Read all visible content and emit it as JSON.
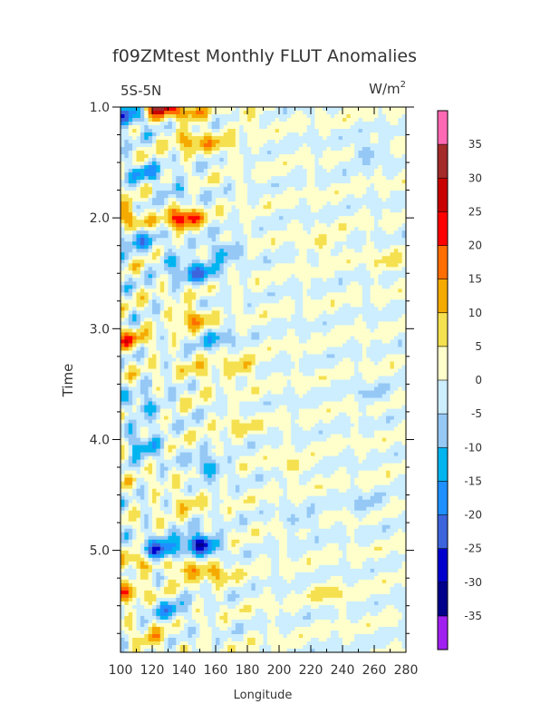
{
  "chart_data": {
    "type": "heatmap",
    "title": "f09ZMtest Monthly FLUT Anomalies",
    "left_subtitle": "5S-5N",
    "right_subtitle_base": "W/m",
    "right_subtitle_sup": "2",
    "xlabel": "Longitude",
    "ylabel": "Time",
    "xlim": [
      100,
      280
    ],
    "ylim": [
      1.0,
      5.92
    ],
    "x_ticks": [
      100,
      120,
      140,
      160,
      180,
      200,
      220,
      240,
      260,
      280
    ],
    "y_ticks": [
      "1.0",
      "2.0",
      "3.0",
      "4.0",
      "5.0"
    ],
    "y_tick_values": [
      1.0,
      2.0,
      3.0,
      4.0,
      5.0
    ],
    "colorbar": {
      "levels": [
        -35,
        -30,
        -25,
        -20,
        -15,
        -10,
        -5,
        0,
        5,
        10,
        15,
        20,
        25,
        30,
        35
      ],
      "labels": [
        "-35",
        "-30",
        "-25",
        "-20",
        "-15",
        "-10",
        "-5",
        "0",
        "5",
        "10",
        "15",
        "20",
        "25",
        "30",
        "35"
      ],
      "colors": [
        "#a020f0",
        "#00008b",
        "#0000cd",
        "#3c64dc",
        "#1e90ff",
        "#00b4f0",
        "#96c8f5",
        "#cceeff",
        "#ffffcc",
        "#f5e050",
        "#f5aa00",
        "#ff6e00",
        "#ff0000",
        "#c80000",
        "#a52a2a",
        "#ff69b4"
      ]
    },
    "anomaly_centers": [
      {
        "lon": 125,
        "t": 1.0,
        "v": 28
      },
      {
        "lon": 145,
        "t": 1.05,
        "v": 12
      },
      {
        "lon": 105,
        "t": 1.08,
        "v": -22
      },
      {
        "lon": 145,
        "t": 1.3,
        "v": 12
      },
      {
        "lon": 165,
        "t": 1.35,
        "v": 8
      },
      {
        "lon": 180,
        "t": 1.05,
        "v": 6
      },
      {
        "lon": 115,
        "t": 1.6,
        "v": -12
      },
      {
        "lon": 135,
        "t": 1.75,
        "v": -8
      },
      {
        "lon": 140,
        "t": 2.0,
        "v": 24
      },
      {
        "lon": 105,
        "t": 2.0,
        "v": 16
      },
      {
        "lon": 110,
        "t": 2.18,
        "v": -14
      },
      {
        "lon": 150,
        "t": 2.5,
        "v": -16
      },
      {
        "lon": 135,
        "t": 2.4,
        "v": -10
      },
      {
        "lon": 165,
        "t": 2.3,
        "v": -12
      },
      {
        "lon": 230,
        "t": 2.25,
        "v": 6
      },
      {
        "lon": 270,
        "t": 2.4,
        "v": 6
      },
      {
        "lon": 145,
        "t": 2.9,
        "v": 14
      },
      {
        "lon": 105,
        "t": 3.1,
        "v": 14
      },
      {
        "lon": 160,
        "t": 3.1,
        "v": -10
      },
      {
        "lon": 175,
        "t": 3.35,
        "v": 10
      },
      {
        "lon": 150,
        "t": 3.4,
        "v": 8
      },
      {
        "lon": 115,
        "t": 3.7,
        "v": -12
      },
      {
        "lon": 175,
        "t": 3.85,
        "v": 6
      },
      {
        "lon": 115,
        "t": 4.05,
        "v": -16
      },
      {
        "lon": 155,
        "t": 4.25,
        "v": -14
      },
      {
        "lon": 210,
        "t": 4.25,
        "v": 6
      },
      {
        "lon": 140,
        "t": 4.55,
        "v": 8
      },
      {
        "lon": 150,
        "t": 4.95,
        "v": -30
      },
      {
        "lon": 125,
        "t": 5.0,
        "v": -26
      },
      {
        "lon": 140,
        "t": 5.15,
        "v": 14
      },
      {
        "lon": 160,
        "t": 5.2,
        "v": 10
      },
      {
        "lon": 110,
        "t": 5.1,
        "v": 12
      },
      {
        "lon": 105,
        "t": 5.4,
        "v": 12
      },
      {
        "lon": 130,
        "t": 5.55,
        "v": -12
      },
      {
        "lon": 230,
        "t": 5.4,
        "v": 6
      },
      {
        "lon": 215,
        "t": 4.75,
        "v": -6
      },
      {
        "lon": 255,
        "t": 1.4,
        "v": -8
      },
      {
        "lon": 255,
        "t": 4.6,
        "v": -6
      },
      {
        "lon": 120,
        "t": 5.8,
        "v": 10
      },
      {
        "lon": 260,
        "t": 3.6,
        "v": -6
      }
    ]
  }
}
